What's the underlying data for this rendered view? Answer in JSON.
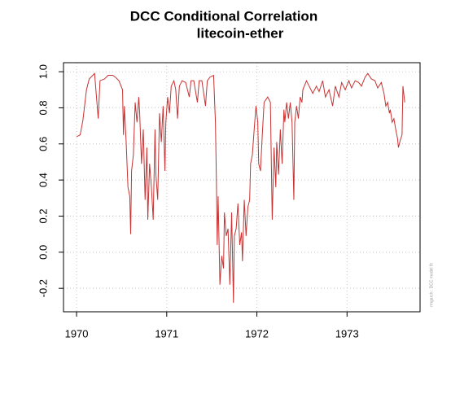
{
  "chart_data": {
    "type": "line",
    "title": "DCC Conditional Correlation",
    "subtitle": "litecoin-ether",
    "annotation": "rmgarch : DCC model fit",
    "grid": true,
    "xlim": [
      1969.855,
      1973.81
    ],
    "ylim": [
      -0.33,
      1.05
    ],
    "xticks": [
      1970,
      1971,
      1972,
      1973
    ],
    "yticks": [
      {
        "value": -0.2,
        "label": "-0.2"
      },
      {
        "value": 0,
        "label": "0.0"
      },
      0.2,
      0.4,
      0.6,
      0.8,
      {
        "value": 1,
        "label": "1.0"
      }
    ],
    "series": [
      {
        "name": "litecoin-ether",
        "color": "#c83232",
        "x": [
          1970.0,
          1970.04,
          1970.07,
          1970.11,
          1970.14,
          1970.18,
          1970.2,
          1970.24,
          1970.26,
          1970.31,
          1970.35,
          1970.4,
          1970.43,
          1970.47,
          1970.51,
          1970.52,
          1970.53,
          1970.55,
          1970.57,
          1970.59,
          1970.6,
          1970.61,
          1970.63,
          1970.65,
          1970.67,
          1970.69,
          1970.7,
          1970.72,
          1970.74,
          1970.76,
          1970.78,
          1970.79,
          1970.81,
          1970.83,
          1970.85,
          1970.87,
          1970.88,
          1970.9,
          1970.92,
          1970.94,
          1970.96,
          1970.98,
          1970.99,
          1971.01,
          1971.03,
          1971.05,
          1971.08,
          1971.1,
          1971.12,
          1971.14,
          1971.17,
          1971.21,
          1971.25,
          1971.27,
          1971.3,
          1971.34,
          1971.36,
          1971.39,
          1971.43,
          1971.45,
          1971.48,
          1971.52,
          1971.54,
          1971.55,
          1971.56,
          1971.57,
          1971.59,
          1971.61,
          1971.63,
          1971.64,
          1971.66,
          1971.68,
          1971.7,
          1971.72,
          1971.74,
          1971.75,
          1971.77,
          1971.79,
          1971.81,
          1971.83,
          1971.84,
          1971.86,
          1971.88,
          1971.9,
          1971.92,
          1971.93,
          1971.95,
          1971.97,
          1971.99,
          1972.01,
          1972.02,
          1972.04,
          1972.06,
          1972.08,
          1972.12,
          1972.15,
          1972.17,
          1972.19,
          1972.21,
          1972.22,
          1972.24,
          1972.26,
          1972.28,
          1972.3,
          1972.31,
          1972.33,
          1972.35,
          1972.37,
          1972.39,
          1972.41,
          1972.42,
          1972.44,
          1972.46,
          1972.48,
          1972.5,
          1972.51,
          1972.55,
          1972.58,
          1972.62,
          1972.66,
          1972.69,
          1972.73,
          1972.76,
          1972.8,
          1972.84,
          1972.87,
          1972.91,
          1972.94,
          1972.98,
          1973.02,
          1973.05,
          1973.09,
          1973.13,
          1973.16,
          1973.2,
          1973.23,
          1973.27,
          1973.31,
          1973.34,
          1973.38,
          1973.41,
          1973.43,
          1973.45,
          1973.47,
          1973.48,
          1973.5,
          1973.52,
          1973.54,
          1973.56,
          1973.57,
          1973.59,
          1973.61,
          1973.62,
          1973.64
        ],
        "values": [
          0.64,
          0.65,
          0.73,
          0.9,
          0.96,
          0.98,
          0.99,
          0.74,
          0.95,
          0.96,
          0.98,
          0.98,
          0.97,
          0.95,
          0.9,
          0.65,
          0.81,
          0.61,
          0.36,
          0.31,
          0.1,
          0.45,
          0.54,
          0.83,
          0.72,
          0.86,
          0.77,
          0.49,
          0.68,
          0.29,
          0.58,
          0.18,
          0.49,
          0.36,
          0.18,
          0.68,
          0.43,
          0.29,
          0.77,
          0.61,
          0.81,
          0.45,
          0.72,
          0.86,
          0.77,
          0.92,
          0.95,
          0.9,
          0.74,
          0.92,
          0.95,
          0.94,
          0.86,
          0.95,
          0.95,
          0.83,
          0.95,
          0.95,
          0.81,
          0.95,
          0.97,
          0.98,
          0.72,
          0.43,
          0.04,
          0.31,
          -0.18,
          -0.02,
          -0.09,
          0.22,
          0.09,
          0.13,
          -0.18,
          0.22,
          -0.28,
          0.09,
          0.13,
          0.27,
          0.04,
          0.11,
          -0.05,
          0.29,
          0.09,
          0.25,
          0.29,
          0.49,
          0.54,
          0.68,
          0.81,
          0.72,
          0.49,
          0.45,
          0.65,
          0.83,
          0.86,
          0.83,
          0.18,
          0.58,
          0.36,
          0.61,
          0.43,
          0.68,
          0.49,
          0.79,
          0.72,
          0.83,
          0.74,
          0.83,
          0.72,
          0.29,
          0.72,
          0.81,
          0.74,
          0.86,
          0.83,
          0.9,
          0.95,
          0.92,
          0.88,
          0.92,
          0.89,
          0.95,
          0.86,
          0.9,
          0.81,
          0.92,
          0.86,
          0.94,
          0.9,
          0.95,
          0.91,
          0.95,
          0.94,
          0.92,
          0.97,
          0.99,
          0.96,
          0.95,
          0.91,
          0.94,
          0.88,
          0.81,
          0.83,
          0.77,
          0.79,
          0.72,
          0.74,
          0.68,
          0.63,
          0.58,
          0.62,
          0.65,
          0.92,
          0.83
        ]
      }
    ]
  }
}
